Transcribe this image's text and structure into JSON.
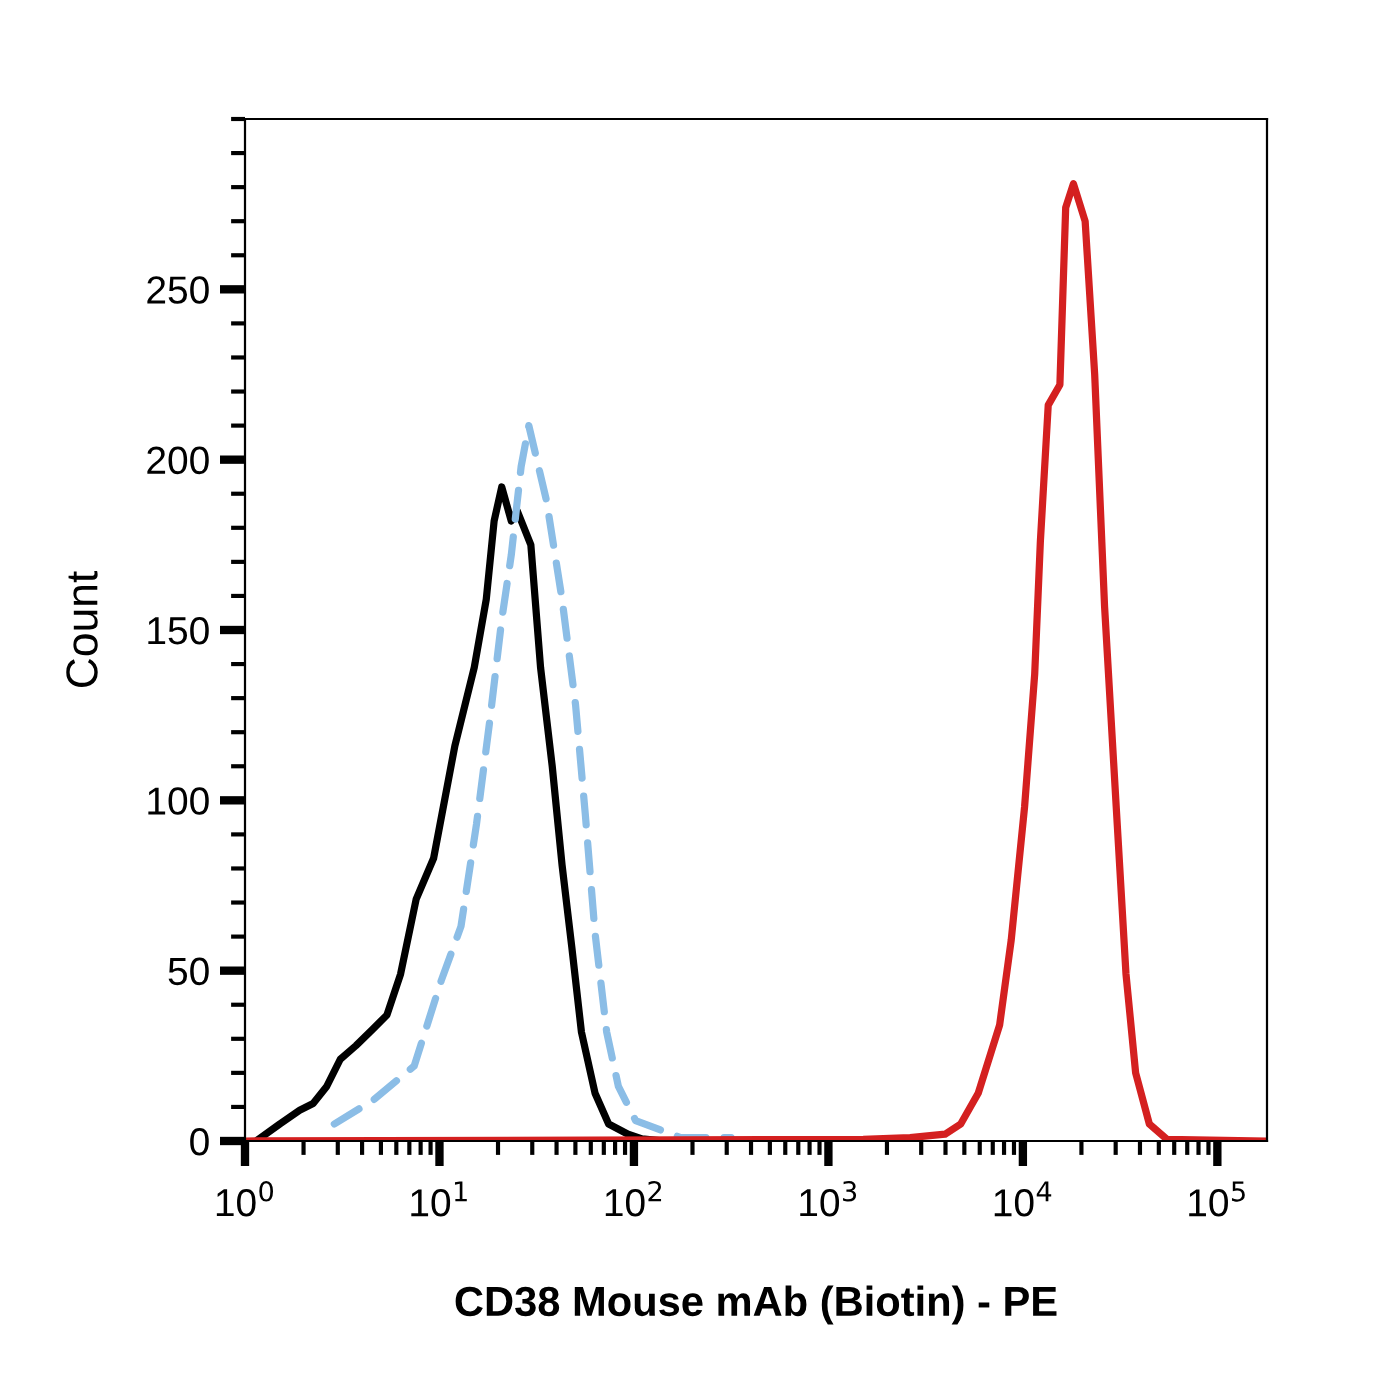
{
  "chart_data": {
    "type": "line",
    "xlabel": "CD38 Mouse mAb (Biotin) - PE",
    "ylabel": "Count",
    "log": "x",
    "xlim": [
      1,
      180000
    ],
    "ylim": [
      0,
      300
    ],
    "xticks": [
      {
        "value": 1,
        "label": "10$^{0}$"
      },
      {
        "value": 10,
        "label": "10$^{1}$"
      },
      {
        "value": 100,
        "label": "10$^{2}$"
      },
      {
        "value": 1000,
        "label": "10$^{3}$"
      },
      {
        "value": 10000,
        "label": "10$^{4}$"
      },
      {
        "value": 100000,
        "label": "10$^{5}$"
      }
    ],
    "yticks": [
      0,
      50,
      100,
      150,
      200,
      250
    ],
    "grid": false,
    "legend": false,
    "series": [
      {
        "color": "#000000",
        "line_style": "solid",
        "x": [
          1.18,
          1.51,
          1.91,
          2.24,
          2.63,
          3.09,
          3.72,
          4.57,
          5.37,
          6.31,
          7.59,
          9.33,
          12.0,
          15.1,
          17.4,
          19.1,
          20.9,
          23.4,
          25.1,
          29.5,
          33.1,
          38.0,
          42.7,
          47.9,
          53.7,
          63.1,
          74.1,
          93.3,
          110,
          141
        ],
        "values": [
          0.6,
          5,
          9,
          11,
          16,
          24,
          28,
          33,
          37,
          49,
          71,
          83,
          116,
          139,
          159,
          182,
          192,
          182,
          185,
          175,
          139,
          110,
          81,
          57,
          32,
          14,
          5,
          2,
          0.6,
          0
        ]
      },
      {
        "color": "#8bbde6",
        "line_style": "dashed",
        "x": [
          2.88,
          4.57,
          7.41,
          10.2,
          12.9,
          15.5,
          18.2,
          20.9,
          23.4,
          26.3,
          28.8,
          35.5,
          42.7,
          50.1,
          56.2,
          63.1,
          72.4,
          83.2,
          102,
          174,
          316
        ],
        "values": [
          5,
          12,
          22,
          47,
          63,
          93,
          124,
          153,
          172,
          198,
          210,
          188,
          159,
          128,
          96,
          61,
          32,
          16,
          6,
          1,
          1
        ]
      },
      {
        "color": "#d42020",
        "line_style": "solid",
        "x": [
          1,
          1510,
          2630,
          3980,
          4790,
          5890,
          7590,
          8710,
          10200,
          11500,
          12300,
          13500,
          15500,
          16600,
          18200,
          20900,
          23400,
          26300,
          30200,
          33900,
          38000,
          44700,
          55000,
          180000
        ],
        "values": [
          0,
          0.5,
          1,
          2,
          5,
          14,
          34,
          59,
          98,
          137,
          176,
          216,
          222,
          274,
          281,
          270,
          225,
          157,
          98,
          49,
          20,
          5,
          0.5,
          0
        ]
      }
    ]
  }
}
